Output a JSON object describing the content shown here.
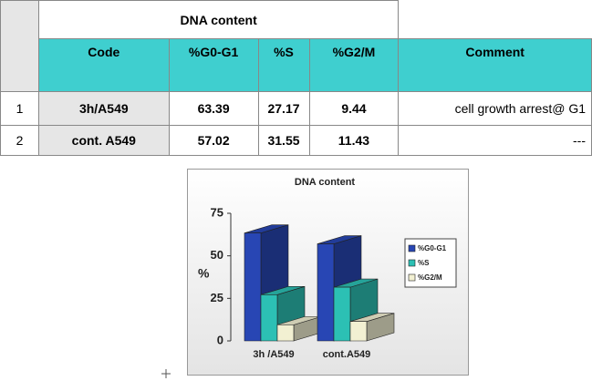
{
  "table": {
    "title": "DNA content",
    "headers": [
      "Code",
      "%G0-G1",
      "%S",
      "%G2/M",
      "Comment"
    ],
    "rows": [
      [
        "1",
        "3h/A549",
        "63.39",
        "27.17",
        "9.44",
        "cell growth arrest@ G1"
      ],
      [
        "2",
        "cont. A549",
        "57.02",
        "31.55",
        "11.43",
        "---"
      ]
    ]
  },
  "chart_data": {
    "type": "bar",
    "title": "DNA content",
    "ylabel": "%",
    "categories": [
      "3h /A549",
      "cont.A549"
    ],
    "series": [
      {
        "name": "%G0-G1",
        "color": "#2846b4",
        "values": [
          63.39,
          57.02
        ]
      },
      {
        "name": "%S",
        "color": "#2cc0b4",
        "values": [
          27.17,
          31.55
        ]
      },
      {
        "name": "%G2/M",
        "color": "#f2f0d2",
        "values": [
          9.44,
          11.43
        ]
      }
    ],
    "ylim": [
      0,
      75
    ],
    "yticks": [
      0,
      25,
      50,
      75
    ],
    "legend": "right"
  }
}
